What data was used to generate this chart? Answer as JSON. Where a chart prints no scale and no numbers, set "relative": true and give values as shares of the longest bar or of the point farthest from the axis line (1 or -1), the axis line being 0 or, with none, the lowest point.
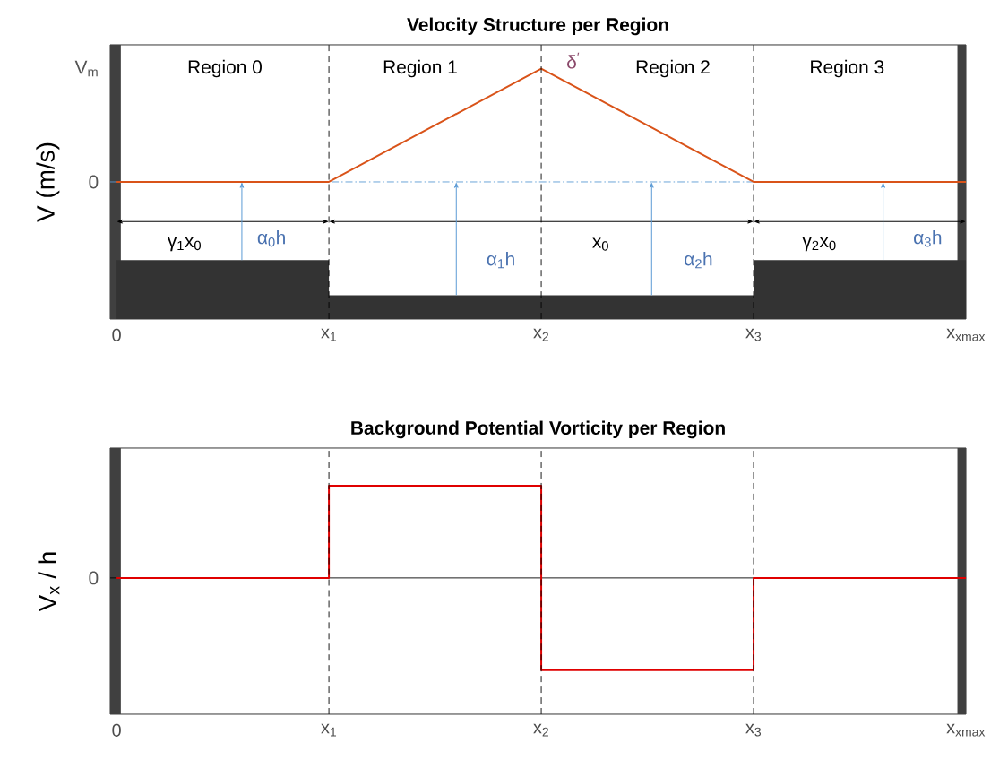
{
  "chart_data": [
    {
      "type": "line",
      "title": "Velocity Structure per Region",
      "ylabel": "V (m/s)",
      "relative": true,
      "xlim": [
        -0.03,
        4.0
      ],
      "xticks": [
        0,
        {
          "value": 1,
          "label": "x$_{1}$"
        },
        {
          "value": 2,
          "label": "x$_{2}$"
        },
        {
          "value": 3,
          "label": "x$_{3}$"
        },
        {
          "value": 4,
          "label": "x$_{xmax}$"
        }
      ],
      "series": [
        {
          "type": "area",
          "color": "#333333",
          "x": [
            0,
            1,
            1,
            3,
            3,
            4
          ],
          "values": [
            -0.69,
            -0.69,
            -1.0,
            -1.0,
            -0.69,
            -0.69
          ]
        },
        {
          "color": "#d95319",
          "line_style": "solid",
          "x": [
            0,
            1,
            2,
            3,
            4
          ],
          "values": [
            0,
            0,
            1,
            0,
            0
          ]
        }
      ],
      "ref_lines": [
        {
          "axis": "y",
          "value": 0,
          "color": "#5b9bd5",
          "line_style": "dashdot"
        },
        {
          "axis": "x",
          "value": 1,
          "color": "#000000",
          "line_style": "dashed"
        },
        {
          "axis": "x",
          "value": 2,
          "color": "#000000",
          "line_style": "dashed"
        },
        {
          "axis": "x",
          "value": 3,
          "color": "#000000",
          "line_style": "dashed"
        }
      ],
      "bands": [
        {
          "axis": "x",
          "from": -0.03,
          "to": 0.02,
          "color": "#404040"
        },
        {
          "axis": "x",
          "from": 3.96,
          "to": 4.0,
          "color": "#404040"
        }
      ],
      "annotations": [
        "Region 0",
        "Region 1",
        "Region 2",
        "Region 3",
        "δ$^{′}$",
        "γ$_{1}$x$_{0}$",
        "x$_{0}$",
        "γ$_{2}$x$_{0}$",
        "α$_{0}$h",
        "α$_{1}$h",
        "α$_{2}$h",
        "α$_{3}$h",
        "V$_{m}$",
        "0"
      ]
    },
    {
      "type": "step",
      "title": "Background Potential Vorticity per Region",
      "ylabel": "V$_{x}$ / h",
      "relative": true,
      "xlim": [
        -0.03,
        4.0
      ],
      "xticks": [
        0,
        {
          "value": 1,
          "label": "x$_{1}$"
        },
        {
          "value": 2,
          "label": "x$_{2}$"
        },
        {
          "value": 3,
          "label": "x$_{3}$"
        },
        {
          "value": 4,
          "label": "x$_{xmax}$"
        }
      ],
      "series": [
        {
          "color": "#e00000",
          "line_style": "solid",
          "x": [
            0,
            1,
            2,
            3,
            4
          ],
          "values": [
            0,
            1,
            -1,
            0,
            0
          ]
        }
      ],
      "ref_lines": [
        {
          "axis": "y",
          "value": 0,
          "color": "#000000",
          "line_style": "solid"
        },
        {
          "axis": "x",
          "value": 1,
          "color": "#000000",
          "line_style": "dashed"
        },
        {
          "axis": "x",
          "value": 2,
          "color": "#000000",
          "line_style": "dashed"
        },
        {
          "axis": "x",
          "value": 3,
          "color": "#000000",
          "line_style": "dashed"
        }
      ],
      "bands": [
        {
          "axis": "x",
          "from": -0.03,
          "to": 0.02,
          "color": "#404040"
        },
        {
          "axis": "x",
          "from": 3.96,
          "to": 4.0,
          "color": "#404040"
        }
      ],
      "annotations": [
        "0"
      ]
    }
  ]
}
